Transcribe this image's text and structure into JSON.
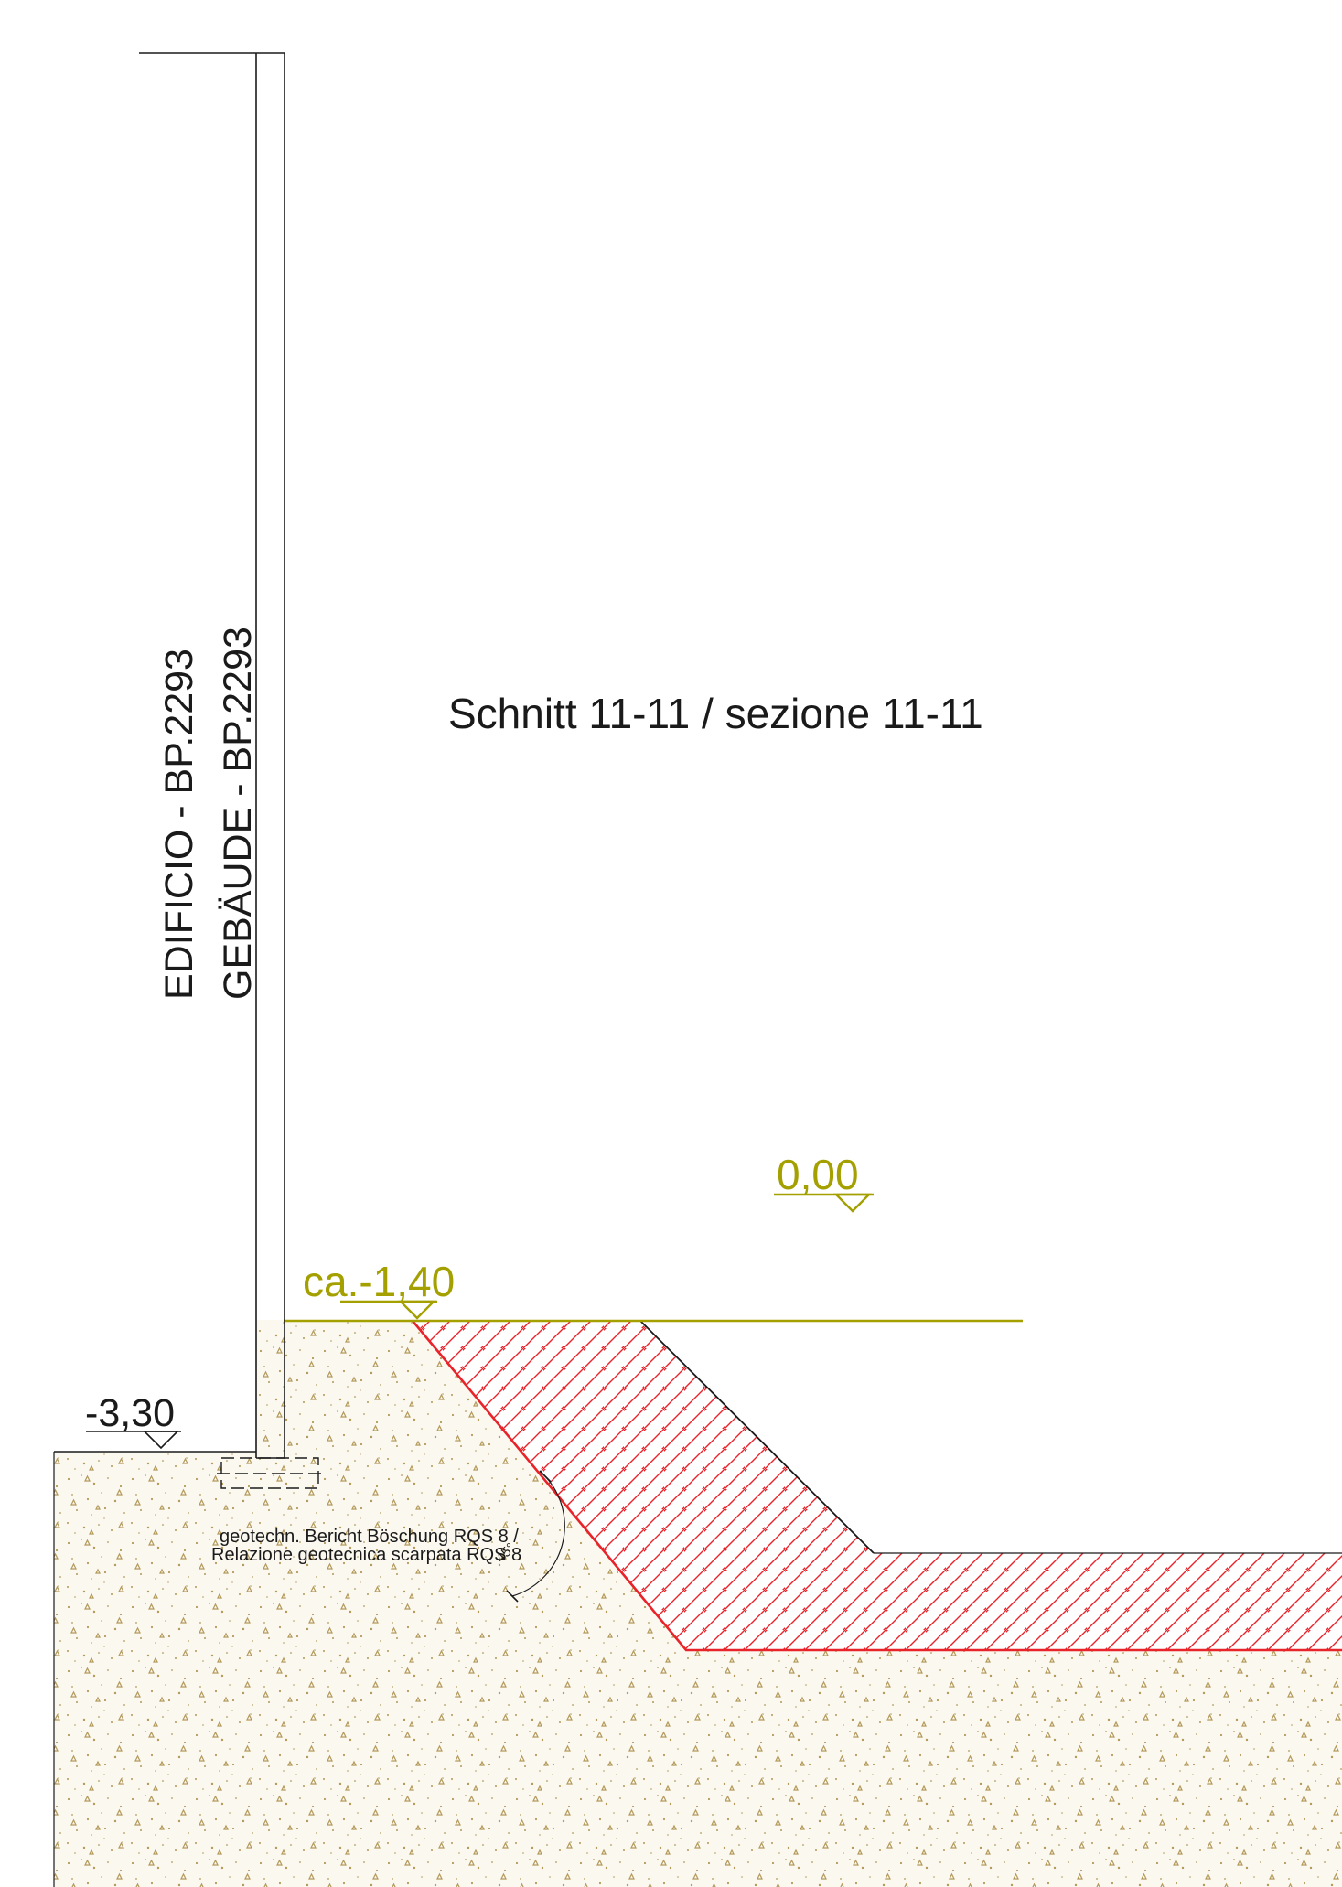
{
  "section_title": "Schnitt 11-11 / sezione 11-11",
  "building_label_it": "EDIFICIO - BP.2293",
  "building_label_de": "GEBÄUDE - BP.2293",
  "levels": {
    "reference": "0,00",
    "excavation_top": "ca.-1,40",
    "foundation": "-3,30"
  },
  "slope_angle": "45°",
  "note_line1": "geotechn. Bericht Böschung RQS 8 /",
  "note_line2": "Relazione geotecnica scarpata RQS 8",
  "colors": {
    "line": "#1a1a1a",
    "level_accent": "#a3a000",
    "hatch_red": "#e8232a",
    "soil_fill": "#fbf8f0",
    "soil_speckle": "#b39a5a"
  }
}
